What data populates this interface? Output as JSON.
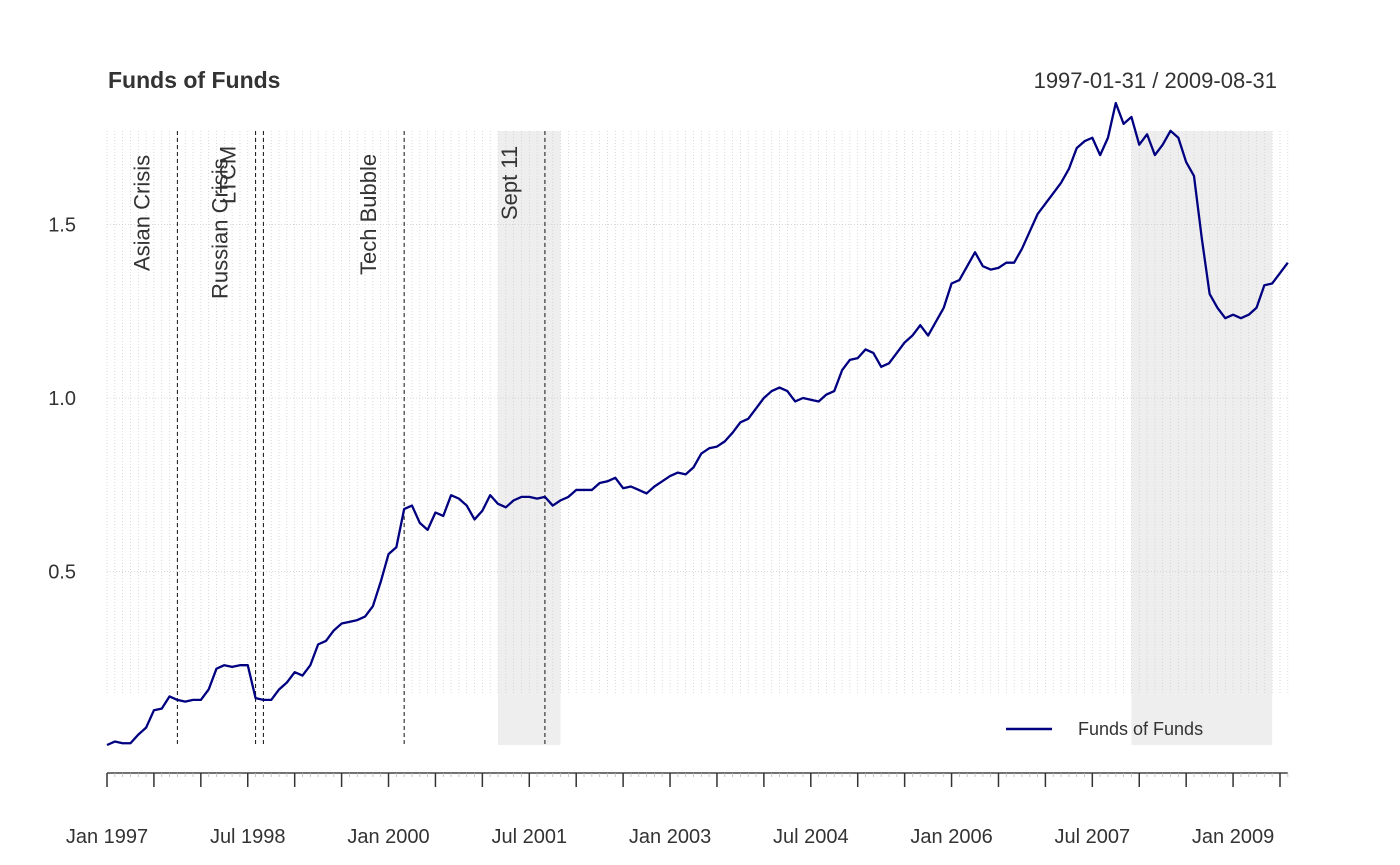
{
  "chart_data": {
    "type": "line",
    "title": "Funds of Funds",
    "date_range_label": "1997-01-31 / 2009-08-31",
    "xlabel": "",
    "ylabel": "",
    "ylim": [
      0,
      1.8
    ],
    "y_ticks": [
      0.5,
      1.0,
      1.5
    ],
    "y_tick_labels": [
      "0.5",
      "1.0",
      "1.5"
    ],
    "x_range": [
      "1997-01",
      "2009-08"
    ],
    "x_ticks": [
      "1997-01",
      "1998-07",
      "2000-01",
      "2001-07",
      "2003-01",
      "2004-07",
      "2006-01",
      "2007-07",
      "2009-01"
    ],
    "x_tick_labels": [
      "Jan 1997",
      "Jul 1998",
      "Jan 2000",
      "Jul 2001",
      "Jan 2003",
      "Jul 2004",
      "Jan 2006",
      "Jul 2007",
      "Jan 2009"
    ],
    "grid": true,
    "legend": {
      "position": "bottom-right",
      "entries": [
        "Funds of Funds"
      ]
    },
    "events": [
      {
        "label": "Asian Crisis",
        "date": "1997-10"
      },
      {
        "label": "Russian Crisis",
        "date": "1998-08"
      },
      {
        "label": "LTCM",
        "date": "1998-09"
      },
      {
        "label": "Tech Bubble",
        "date": "2000-03"
      },
      {
        "label": "Sept 11",
        "date": "2001-09"
      }
    ],
    "shaded_periods": [
      {
        "start": "2001-03",
        "end": "2001-11"
      },
      {
        "start": "2007-12",
        "end": "2009-06"
      }
    ],
    "series": [
      {
        "name": "Funds of Funds",
        "color": "#000080",
        "start": "1997-01",
        "frequency": "monthly",
        "values": [
          0.0,
          0.01,
          0.005,
          0.005,
          0.03,
          0.05,
          0.1,
          0.105,
          0.14,
          0.13,
          0.125,
          0.13,
          0.13,
          0.16,
          0.22,
          0.23,
          0.225,
          0.23,
          0.23,
          0.135,
          0.13,
          0.13,
          0.16,
          0.18,
          0.21,
          0.2,
          0.23,
          0.29,
          0.3,
          0.33,
          0.35,
          0.355,
          0.36,
          0.37,
          0.4,
          0.47,
          0.55,
          0.57,
          0.68,
          0.69,
          0.64,
          0.62,
          0.67,
          0.66,
          0.72,
          0.71,
          0.69,
          0.65,
          0.675,
          0.72,
          0.695,
          0.685,
          0.705,
          0.715,
          0.715,
          0.71,
          0.715,
          0.69,
          0.705,
          0.715,
          0.735,
          0.735,
          0.735,
          0.755,
          0.76,
          0.77,
          0.74,
          0.745,
          0.735,
          0.725,
          0.745,
          0.76,
          0.775,
          0.785,
          0.78,
          0.8,
          0.84,
          0.855,
          0.86,
          0.875,
          0.9,
          0.93,
          0.94,
          0.97,
          1.0,
          1.02,
          1.03,
          1.02,
          0.99,
          1.0,
          0.995,
          0.99,
          1.01,
          1.02,
          1.08,
          1.11,
          1.115,
          1.14,
          1.13,
          1.09,
          1.1,
          1.13,
          1.16,
          1.18,
          1.21,
          1.18,
          1.22,
          1.26,
          1.33,
          1.34,
          1.38,
          1.42,
          1.38,
          1.37,
          1.375,
          1.39,
          1.39,
          1.43,
          1.48,
          1.53,
          1.56,
          1.59,
          1.62,
          1.66,
          1.72,
          1.74,
          1.75,
          1.7,
          1.75,
          1.85,
          1.79,
          1.81,
          1.73,
          1.76,
          1.7,
          1.73,
          1.77,
          1.75,
          1.68,
          1.64,
          1.46,
          1.3,
          1.26,
          1.23,
          1.24,
          1.23,
          1.24,
          1.26,
          1.325,
          1.33,
          1.36,
          1.39
        ]
      }
    ]
  }
}
